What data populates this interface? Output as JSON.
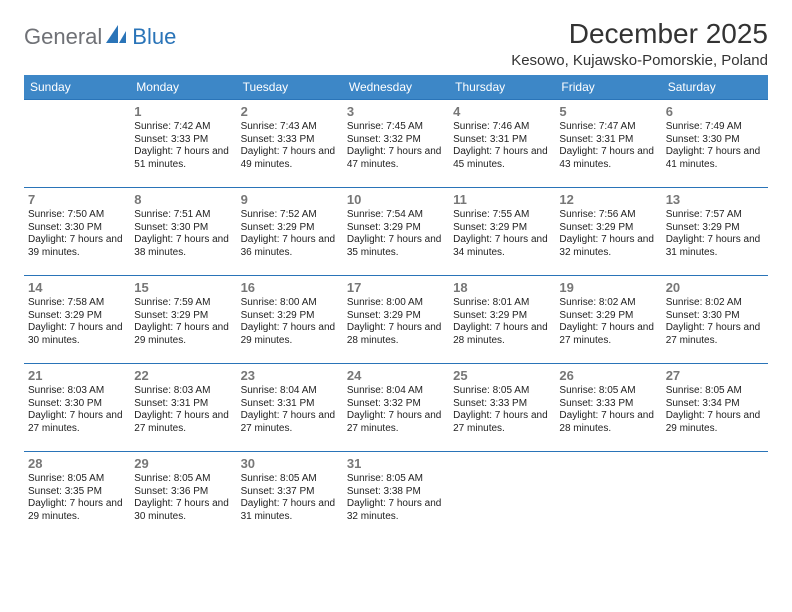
{
  "logo": {
    "part1": "General",
    "part2": "Blue"
  },
  "title": "December 2025",
  "location": "Kesowo, Kujawsko-Pomorskie, Poland",
  "colors": {
    "header_bg": "#3d87c7",
    "header_text": "#ffffff",
    "rule": "#2a74b8",
    "daynum": "#777777",
    "body_text": "#222222",
    "logo_gray": "#6f7176",
    "logo_blue": "#2a74b8",
    "background": "#ffffff"
  },
  "fonts": {
    "title_size": 28,
    "location_size": 15,
    "header_size": 12,
    "daynum_size": 13,
    "cell_size": 10
  },
  "layout": {
    "columns": 7,
    "rows": 5,
    "first_weekday_index": 1
  },
  "weekdays": [
    "Sunday",
    "Monday",
    "Tuesday",
    "Wednesday",
    "Thursday",
    "Friday",
    "Saturday"
  ],
  "days": [
    {
      "n": 1,
      "sr": "7:42 AM",
      "ss": "3:33 PM",
      "dl": "7 hours and 51 minutes."
    },
    {
      "n": 2,
      "sr": "7:43 AM",
      "ss": "3:33 PM",
      "dl": "7 hours and 49 minutes."
    },
    {
      "n": 3,
      "sr": "7:45 AM",
      "ss": "3:32 PM",
      "dl": "7 hours and 47 minutes."
    },
    {
      "n": 4,
      "sr": "7:46 AM",
      "ss": "3:31 PM",
      "dl": "7 hours and 45 minutes."
    },
    {
      "n": 5,
      "sr": "7:47 AM",
      "ss": "3:31 PM",
      "dl": "7 hours and 43 minutes."
    },
    {
      "n": 6,
      "sr": "7:49 AM",
      "ss": "3:30 PM",
      "dl": "7 hours and 41 minutes."
    },
    {
      "n": 7,
      "sr": "7:50 AM",
      "ss": "3:30 PM",
      "dl": "7 hours and 39 minutes."
    },
    {
      "n": 8,
      "sr": "7:51 AM",
      "ss": "3:30 PM",
      "dl": "7 hours and 38 minutes."
    },
    {
      "n": 9,
      "sr": "7:52 AM",
      "ss": "3:29 PM",
      "dl": "7 hours and 36 minutes."
    },
    {
      "n": 10,
      "sr": "7:54 AM",
      "ss": "3:29 PM",
      "dl": "7 hours and 35 minutes."
    },
    {
      "n": 11,
      "sr": "7:55 AM",
      "ss": "3:29 PM",
      "dl": "7 hours and 34 minutes."
    },
    {
      "n": 12,
      "sr": "7:56 AM",
      "ss": "3:29 PM",
      "dl": "7 hours and 32 minutes."
    },
    {
      "n": 13,
      "sr": "7:57 AM",
      "ss": "3:29 PM",
      "dl": "7 hours and 31 minutes."
    },
    {
      "n": 14,
      "sr": "7:58 AM",
      "ss": "3:29 PM",
      "dl": "7 hours and 30 minutes."
    },
    {
      "n": 15,
      "sr": "7:59 AM",
      "ss": "3:29 PM",
      "dl": "7 hours and 29 minutes."
    },
    {
      "n": 16,
      "sr": "8:00 AM",
      "ss": "3:29 PM",
      "dl": "7 hours and 29 minutes."
    },
    {
      "n": 17,
      "sr": "8:00 AM",
      "ss": "3:29 PM",
      "dl": "7 hours and 28 minutes."
    },
    {
      "n": 18,
      "sr": "8:01 AM",
      "ss": "3:29 PM",
      "dl": "7 hours and 28 minutes."
    },
    {
      "n": 19,
      "sr": "8:02 AM",
      "ss": "3:29 PM",
      "dl": "7 hours and 27 minutes."
    },
    {
      "n": 20,
      "sr": "8:02 AM",
      "ss": "3:30 PM",
      "dl": "7 hours and 27 minutes."
    },
    {
      "n": 21,
      "sr": "8:03 AM",
      "ss": "3:30 PM",
      "dl": "7 hours and 27 minutes."
    },
    {
      "n": 22,
      "sr": "8:03 AM",
      "ss": "3:31 PM",
      "dl": "7 hours and 27 minutes."
    },
    {
      "n": 23,
      "sr": "8:04 AM",
      "ss": "3:31 PM",
      "dl": "7 hours and 27 minutes."
    },
    {
      "n": 24,
      "sr": "8:04 AM",
      "ss": "3:32 PM",
      "dl": "7 hours and 27 minutes."
    },
    {
      "n": 25,
      "sr": "8:05 AM",
      "ss": "3:33 PM",
      "dl": "7 hours and 27 minutes."
    },
    {
      "n": 26,
      "sr": "8:05 AM",
      "ss": "3:33 PM",
      "dl": "7 hours and 28 minutes."
    },
    {
      "n": 27,
      "sr": "8:05 AM",
      "ss": "3:34 PM",
      "dl": "7 hours and 29 minutes."
    },
    {
      "n": 28,
      "sr": "8:05 AM",
      "ss": "3:35 PM",
      "dl": "7 hours and 29 minutes."
    },
    {
      "n": 29,
      "sr": "8:05 AM",
      "ss": "3:36 PM",
      "dl": "7 hours and 30 minutes."
    },
    {
      "n": 30,
      "sr": "8:05 AM",
      "ss": "3:37 PM",
      "dl": "7 hours and 31 minutes."
    },
    {
      "n": 31,
      "sr": "8:05 AM",
      "ss": "3:38 PM",
      "dl": "7 hours and 32 minutes."
    }
  ],
  "labels": {
    "sunrise": "Sunrise:",
    "sunset": "Sunset:",
    "daylight": "Daylight:"
  }
}
